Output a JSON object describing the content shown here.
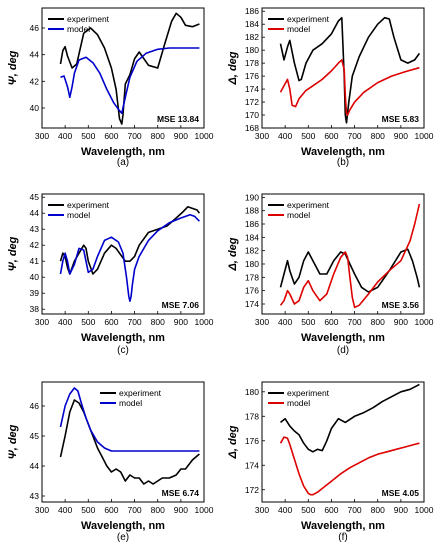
{
  "chart_data": [
    {
      "id": "a",
      "type": "line",
      "caption": "(a)",
      "xlabel": "Wavelength, nm",
      "ylabel": "Ψ, deg",
      "xlim": [
        300,
        1000
      ],
      "ylim": [
        38.5,
        47.5
      ],
      "xticks": [
        300,
        400,
        500,
        600,
        700,
        800,
        900,
        1000
      ],
      "yticks": [
        40,
        42,
        44,
        46
      ],
      "annotation": "MSE 13.84",
      "legend": "top-left",
      "series": [
        {
          "name": "experiment",
          "color": "#000000",
          "x": [
            380,
            390,
            400,
            410,
            430,
            450,
            480,
            510,
            540,
            570,
            600,
            620,
            635,
            645,
            650,
            660,
            680,
            700,
            720,
            760,
            800,
            830,
            860,
            880,
            900,
            920,
            950,
            980
          ],
          "y": [
            43.3,
            44.3,
            44.6,
            43.9,
            43.0,
            43.3,
            45.6,
            46.0,
            45.5,
            44.5,
            43.0,
            41.4,
            39.2,
            38.8,
            39.5,
            41.8,
            42.5,
            43.7,
            44.2,
            43.2,
            43.0,
            44.8,
            46.5,
            47.1,
            46.8,
            46.2,
            46.1,
            46.3
          ]
        },
        {
          "name": "model",
          "color": "#0000cc",
          "x": [
            380,
            395,
            410,
            420,
            430,
            440,
            460,
            490,
            520,
            550,
            580,
            610,
            630,
            645,
            660,
            680,
            710,
            750,
            800,
            850,
            900,
            950,
            980
          ],
          "y": [
            42.3,
            42.4,
            41.6,
            40.8,
            41.6,
            42.6,
            43.6,
            43.8,
            43.4,
            42.6,
            41.4,
            40.4,
            39.9,
            39.6,
            40.8,
            42.3,
            43.5,
            44.1,
            44.4,
            44.5,
            44.5,
            44.5,
            44.5
          ]
        }
      ]
    },
    {
      "id": "b",
      "type": "line",
      "caption": "(b)",
      "xlabel": "Wavelength, nm",
      "ylabel": "Δ, deg",
      "xlim": [
        300,
        1000
      ],
      "ylim": [
        168,
        186.5
      ],
      "xticks": [
        300,
        400,
        500,
        600,
        700,
        800,
        900,
        1000
      ],
      "yticks": [
        168,
        170,
        172,
        174,
        176,
        178,
        180,
        182,
        184,
        186
      ],
      "annotation": "MSE 5.83",
      "legend": "top-left",
      "series": [
        {
          "name": "experiment",
          "color": "#000000",
          "x": [
            380,
            395,
            410,
            420,
            440,
            460,
            470,
            490,
            520,
            560,
            600,
            630,
            645,
            655,
            660,
            665,
            675,
            690,
            720,
            760,
            800,
            830,
            850,
            870,
            900,
            930,
            960,
            980
          ],
          "y": [
            181.0,
            178.5,
            180.5,
            181.5,
            178.0,
            175.3,
            175.5,
            178.0,
            180.0,
            181.0,
            182.5,
            184.5,
            185.0,
            176.0,
            170.0,
            168.8,
            172.0,
            176.0,
            179.0,
            182.0,
            184.0,
            185.0,
            184.8,
            182.0,
            178.5,
            178.0,
            178.5,
            179.5
          ]
        },
        {
          "name": "model",
          "color": "#dd0000",
          "x": [
            380,
            395,
            410,
            420,
            430,
            445,
            460,
            490,
            520,
            560,
            600,
            630,
            645,
            655,
            660,
            665,
            670,
            680,
            700,
            740,
            800,
            860,
            920,
            980
          ],
          "y": [
            173.5,
            174.5,
            175.5,
            174.0,
            171.5,
            171.3,
            172.5,
            173.8,
            174.5,
            175.5,
            176.8,
            178.0,
            178.5,
            177.0,
            173.0,
            170.2,
            170.0,
            170.8,
            172.0,
            173.5,
            175.0,
            176.0,
            176.7,
            177.3
          ]
        }
      ]
    },
    {
      "id": "c",
      "type": "line",
      "caption": "(c)",
      "xlabel": "Wavelength, nm",
      "ylabel": "Ψ, deg",
      "xlim": [
        300,
        1000
      ],
      "ylim": [
        37.7,
        45.2
      ],
      "xticks": [
        300,
        400,
        500,
        600,
        700,
        800,
        900,
        1000
      ],
      "yticks": [
        38,
        39,
        40,
        41,
        42,
        43,
        44,
        45
      ],
      "annotation": "MSE 7.06",
      "legend": "top-left",
      "series": [
        {
          "name": "experiment",
          "color": "#000000",
          "x": [
            380,
            390,
            400,
            410,
            420,
            440,
            460,
            480,
            490,
            500,
            520,
            540,
            570,
            600,
            620,
            640,
            660,
            680,
            700,
            720,
            760,
            800,
            840,
            880,
            910,
            930,
            950,
            970,
            980
          ],
          "y": [
            41.0,
            41.5,
            41.3,
            40.6,
            40.2,
            41.0,
            41.5,
            42.0,
            41.8,
            41.0,
            40.2,
            40.5,
            41.5,
            42.0,
            41.8,
            41.4,
            41.0,
            41.0,
            41.3,
            42.0,
            42.8,
            43.0,
            43.2,
            43.7,
            44.1,
            44.4,
            44.3,
            44.2,
            44.0
          ]
        },
        {
          "name": "model",
          "color": "#0000cc",
          "x": [
            380,
            390,
            400,
            410,
            420,
            440,
            460,
            480,
            490,
            500,
            520,
            540,
            570,
            600,
            630,
            650,
            665,
            675,
            680,
            685,
            690,
            700,
            720,
            760,
            800,
            850,
            900,
            940,
            960,
            980
          ],
          "y": [
            40.2,
            41.0,
            41.5,
            41.0,
            40.2,
            40.8,
            41.8,
            41.7,
            41.0,
            40.3,
            40.5,
            41.3,
            42.3,
            42.5,
            42.2,
            41.5,
            40.0,
            38.8,
            38.5,
            38.8,
            39.5,
            40.5,
            41.3,
            42.3,
            42.9,
            43.4,
            43.7,
            43.9,
            43.8,
            43.5
          ]
        }
      ]
    },
    {
      "id": "d",
      "type": "line",
      "caption": "(d)",
      "xlabel": "Wavelength, nm",
      "ylabel": "Δ, deg",
      "xlim": [
        300,
        1000
      ],
      "ylim": [
        172.5,
        190.5
      ],
      "xticks": [
        300,
        400,
        500,
        600,
        700,
        800,
        900,
        1000
      ],
      "yticks": [
        174,
        176,
        178,
        180,
        182,
        184,
        186,
        188,
        190
      ],
      "annotation": "MSE 3.56",
      "legend": "top-left",
      "series": [
        {
          "name": "experiment",
          "color": "#000000",
          "x": [
            380,
            395,
            410,
            420,
            440,
            460,
            480,
            500,
            520,
            550,
            580,
            610,
            640,
            660,
            680,
            700,
            730,
            760,
            800,
            850,
            900,
            930,
            950,
            970,
            980
          ],
          "y": [
            176.5,
            178.5,
            180.5,
            179.0,
            177.0,
            178.0,
            180.5,
            181.8,
            180.5,
            178.5,
            178.5,
            180.5,
            181.8,
            181.5,
            180.0,
            178.5,
            176.5,
            175.8,
            176.5,
            179.0,
            181.8,
            182.2,
            180.5,
            178.0,
            176.5
          ]
        },
        {
          "name": "model",
          "color": "#dd0000",
          "x": [
            380,
            395,
            410,
            420,
            440,
            460,
            480,
            500,
            520,
            550,
            580,
            610,
            640,
            660,
            670,
            680,
            690,
            700,
            720,
            760,
            800,
            850,
            900,
            940,
            960,
            980
          ],
          "y": [
            173.8,
            174.5,
            176.0,
            175.5,
            174.0,
            174.5,
            176.5,
            177.5,
            176.0,
            174.5,
            175.5,
            178.5,
            181.0,
            181.8,
            181.0,
            178.0,
            175.0,
            173.5,
            173.8,
            175.5,
            177.3,
            179.0,
            180.5,
            183.5,
            186.0,
            189.0
          ]
        }
      ]
    },
    {
      "id": "e",
      "type": "line",
      "caption": "(e)",
      "xlabel": "Wavelength, nm",
      "ylabel": "Ψ, deg",
      "xlim": [
        300,
        1000
      ],
      "ylim": [
        42.8,
        46.8
      ],
      "xticks": [
        300,
        400,
        500,
        600,
        700,
        800,
        900,
        1000
      ],
      "yticks": [
        43,
        44,
        45,
        46
      ],
      "annotation": "MSE 6.74",
      "legend": "top-right",
      "series": [
        {
          "name": "experiment",
          "color": "#000000",
          "x": [
            380,
            400,
            420,
            440,
            460,
            480,
            500,
            520,
            540,
            560,
            580,
            600,
            620,
            640,
            660,
            680,
            700,
            720,
            740,
            760,
            780,
            800,
            820,
            850,
            880,
            900,
            920,
            950,
            980
          ],
          "y": [
            44.3,
            45.0,
            45.8,
            46.2,
            46.1,
            45.8,
            45.4,
            45.0,
            44.6,
            44.3,
            44.0,
            43.8,
            43.9,
            43.8,
            43.5,
            43.7,
            43.6,
            43.6,
            43.4,
            43.5,
            43.4,
            43.5,
            43.6,
            43.6,
            43.7,
            43.9,
            43.9,
            44.2,
            44.4
          ]
        },
        {
          "name": "model",
          "color": "#0000cc",
          "x": [
            380,
            400,
            420,
            440,
            455,
            470,
            490,
            510,
            540,
            570,
            600,
            650,
            700,
            750,
            800,
            850,
            900,
            950,
            980
          ],
          "y": [
            45.3,
            46.0,
            46.4,
            46.6,
            46.5,
            46.1,
            45.6,
            45.2,
            44.8,
            44.6,
            44.5,
            44.5,
            44.5,
            44.5,
            44.5,
            44.5,
            44.5,
            44.5,
            44.5
          ]
        }
      ]
    },
    {
      "id": "f",
      "type": "line",
      "caption": "(f)",
      "xlabel": "Wavelength, nm",
      "ylabel": "Δ, deg",
      "xlim": [
        300,
        1000
      ],
      "ylim": [
        171,
        180.8
      ],
      "xticks": [
        300,
        400,
        500,
        600,
        700,
        800,
        900,
        1000
      ],
      "yticks": [
        172,
        174,
        176,
        178,
        180
      ],
      "annotation": "MSE 4.05",
      "legend": "top-left",
      "series": [
        {
          "name": "experiment",
          "color": "#000000",
          "x": [
            380,
            400,
            420,
            440,
            460,
            480,
            500,
            520,
            540,
            560,
            580,
            600,
            630,
            660,
            700,
            740,
            780,
            820,
            860,
            900,
            940,
            970,
            980
          ],
          "y": [
            177.5,
            177.8,
            177.2,
            176.8,
            176.5,
            175.8,
            175.3,
            175.1,
            175.3,
            175.2,
            176.0,
            177.0,
            177.8,
            177.5,
            178.0,
            178.3,
            178.7,
            179.2,
            179.6,
            180.0,
            180.2,
            180.5,
            180.6
          ]
        },
        {
          "name": "model",
          "color": "#dd0000",
          "x": [
            380,
            395,
            410,
            420,
            440,
            460,
            480,
            500,
            510,
            520,
            540,
            560,
            600,
            640,
            680,
            720,
            760,
            800,
            840,
            880,
            920,
            960,
            980
          ],
          "y": [
            175.8,
            176.3,
            176.2,
            175.7,
            174.5,
            173.3,
            172.3,
            171.7,
            171.6,
            171.6,
            171.8,
            172.1,
            172.7,
            173.3,
            173.8,
            174.2,
            174.6,
            174.9,
            175.1,
            175.3,
            175.5,
            175.7,
            175.8
          ]
        }
      ]
    }
  ]
}
